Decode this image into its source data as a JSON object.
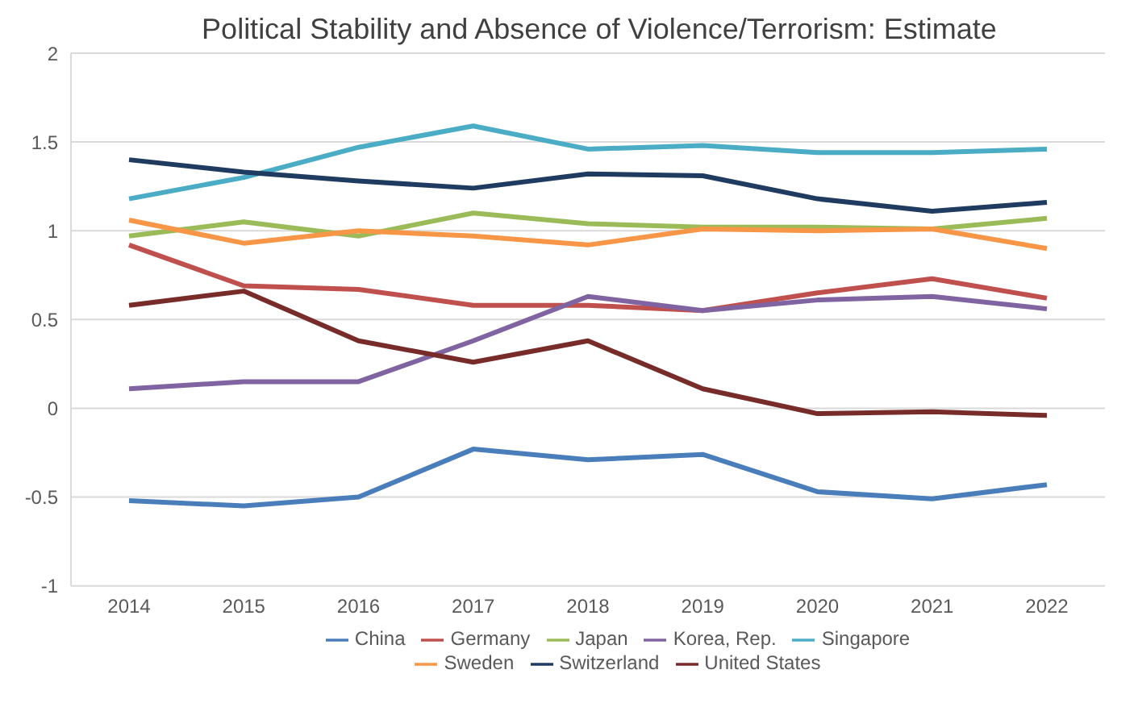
{
  "chart_data": {
    "type": "line",
    "title": "Political Stability and Absence of Violence/Terrorism: Estimate",
    "categories": [
      "2014",
      "2015",
      "2016",
      "2017",
      "2018",
      "2019",
      "2020",
      "2021",
      "2022"
    ],
    "series": [
      {
        "name": "China",
        "color": "#4a7ebb",
        "values": [
          -0.52,
          -0.55,
          -0.5,
          -0.23,
          -0.29,
          -0.26,
          -0.47,
          -0.51,
          -0.43
        ]
      },
      {
        "name": "Germany",
        "color": "#c0504d",
        "values": [
          0.92,
          0.69,
          0.67,
          0.58,
          0.58,
          0.55,
          0.65,
          0.73,
          0.62
        ]
      },
      {
        "name": "Japan",
        "color": "#9bbb59",
        "values": [
          0.97,
          1.05,
          0.97,
          1.1,
          1.04,
          1.02,
          1.02,
          1.01,
          1.07
        ]
      },
      {
        "name": "Korea, Rep.",
        "color": "#8064a2",
        "values": [
          0.11,
          0.15,
          0.15,
          0.38,
          0.63,
          0.55,
          0.61,
          0.63,
          0.56
        ]
      },
      {
        "name": "Singapore",
        "color": "#4bacc6",
        "values": [
          1.18,
          1.3,
          1.47,
          1.59,
          1.46,
          1.48,
          1.44,
          1.44,
          1.46
        ]
      },
      {
        "name": "Sweden",
        "color": "#f79646",
        "values": [
          1.06,
          0.93,
          1.0,
          0.97,
          0.92,
          1.01,
          1.0,
          1.01,
          0.9
        ]
      },
      {
        "name": "Switzerland",
        "color": "#1f3b5f",
        "values": [
          1.4,
          1.33,
          1.28,
          1.24,
          1.32,
          1.31,
          1.18,
          1.11,
          1.16
        ]
      },
      {
        "name": "United States",
        "color": "#772c2a",
        "values": [
          0.58,
          0.66,
          0.38,
          0.26,
          0.38,
          0.11,
          -0.03,
          -0.02,
          -0.04
        ]
      }
    ],
    "ylim": [
      -1,
      2
    ],
    "yticks": [
      -1,
      -0.5,
      0,
      0.5,
      1,
      1.5,
      2
    ],
    "grid": "y",
    "legend": "bottom",
    "marker": "none",
    "line_style": "solid"
  }
}
